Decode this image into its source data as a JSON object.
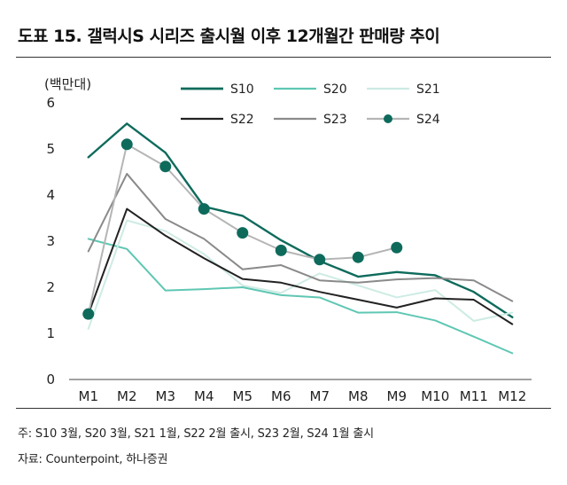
{
  "header": {
    "title": "도표 15. 갤럭시S 시리즈 출시월 이후 12개월간 판매량 추이"
  },
  "chart_data": {
    "type": "line",
    "unit_label": "(백만대)",
    "categories": [
      "M1",
      "M2",
      "M3",
      "M4",
      "M5",
      "M6",
      "M7",
      "M8",
      "M9",
      "M10",
      "M11",
      "M12"
    ],
    "ylim": [
      0,
      6
    ],
    "yticks": [
      "0",
      "1",
      "2",
      "3",
      "4",
      "5",
      "6"
    ],
    "series": [
      {
        "name": "S10",
        "color": "#0e6b5c",
        "width": 2.4,
        "marker": false,
        "values": [
          4.82,
          5.55,
          4.92,
          3.75,
          3.55,
          3.02,
          2.57,
          2.23,
          2.33,
          2.26,
          1.9,
          1.35
        ]
      },
      {
        "name": "S20",
        "color": "#5fc7b3",
        "width": 2.0,
        "marker": false,
        "values": [
          3.05,
          2.83,
          1.93,
          1.96,
          2.0,
          1.83,
          1.78,
          1.45,
          1.46,
          1.28,
          0.93,
          0.57
        ]
      },
      {
        "name": "S21",
        "color": "#cdebe4",
        "width": 2.0,
        "marker": false,
        "values": [
          1.1,
          3.45,
          3.22,
          2.72,
          2.04,
          1.88,
          2.3,
          2.04,
          1.78,
          1.94,
          1.27,
          1.45
        ]
      },
      {
        "name": "S22",
        "color": "#222222",
        "width": 2.0,
        "marker": false,
        "values": [
          1.42,
          3.7,
          3.12,
          2.63,
          2.18,
          2.1,
          1.9,
          1.73,
          1.56,
          1.76,
          1.73,
          1.2
        ]
      },
      {
        "name": "S23",
        "color": "#8a8a8a",
        "width": 2.0,
        "marker": false,
        "values": [
          2.78,
          4.46,
          3.48,
          3.05,
          2.39,
          2.48,
          2.15,
          2.1,
          2.17,
          2.2,
          2.15,
          1.7
        ]
      },
      {
        "name": "S24",
        "color": "#b5b5b5",
        "width": 2.0,
        "marker": true,
        "marker_color": "#0e6b5c",
        "values": [
          1.42,
          5.1,
          4.62,
          3.7,
          3.18,
          2.8,
          2.6,
          2.65,
          2.86,
          null,
          null,
          null
        ]
      }
    ]
  },
  "notes": {
    "line1": "주: S10 3월, S20 3월, S21 1월, S22 2월 출시, S23 2월, S24 1월 출시",
    "line2": "자료: Counterpoint, 하나증권"
  }
}
